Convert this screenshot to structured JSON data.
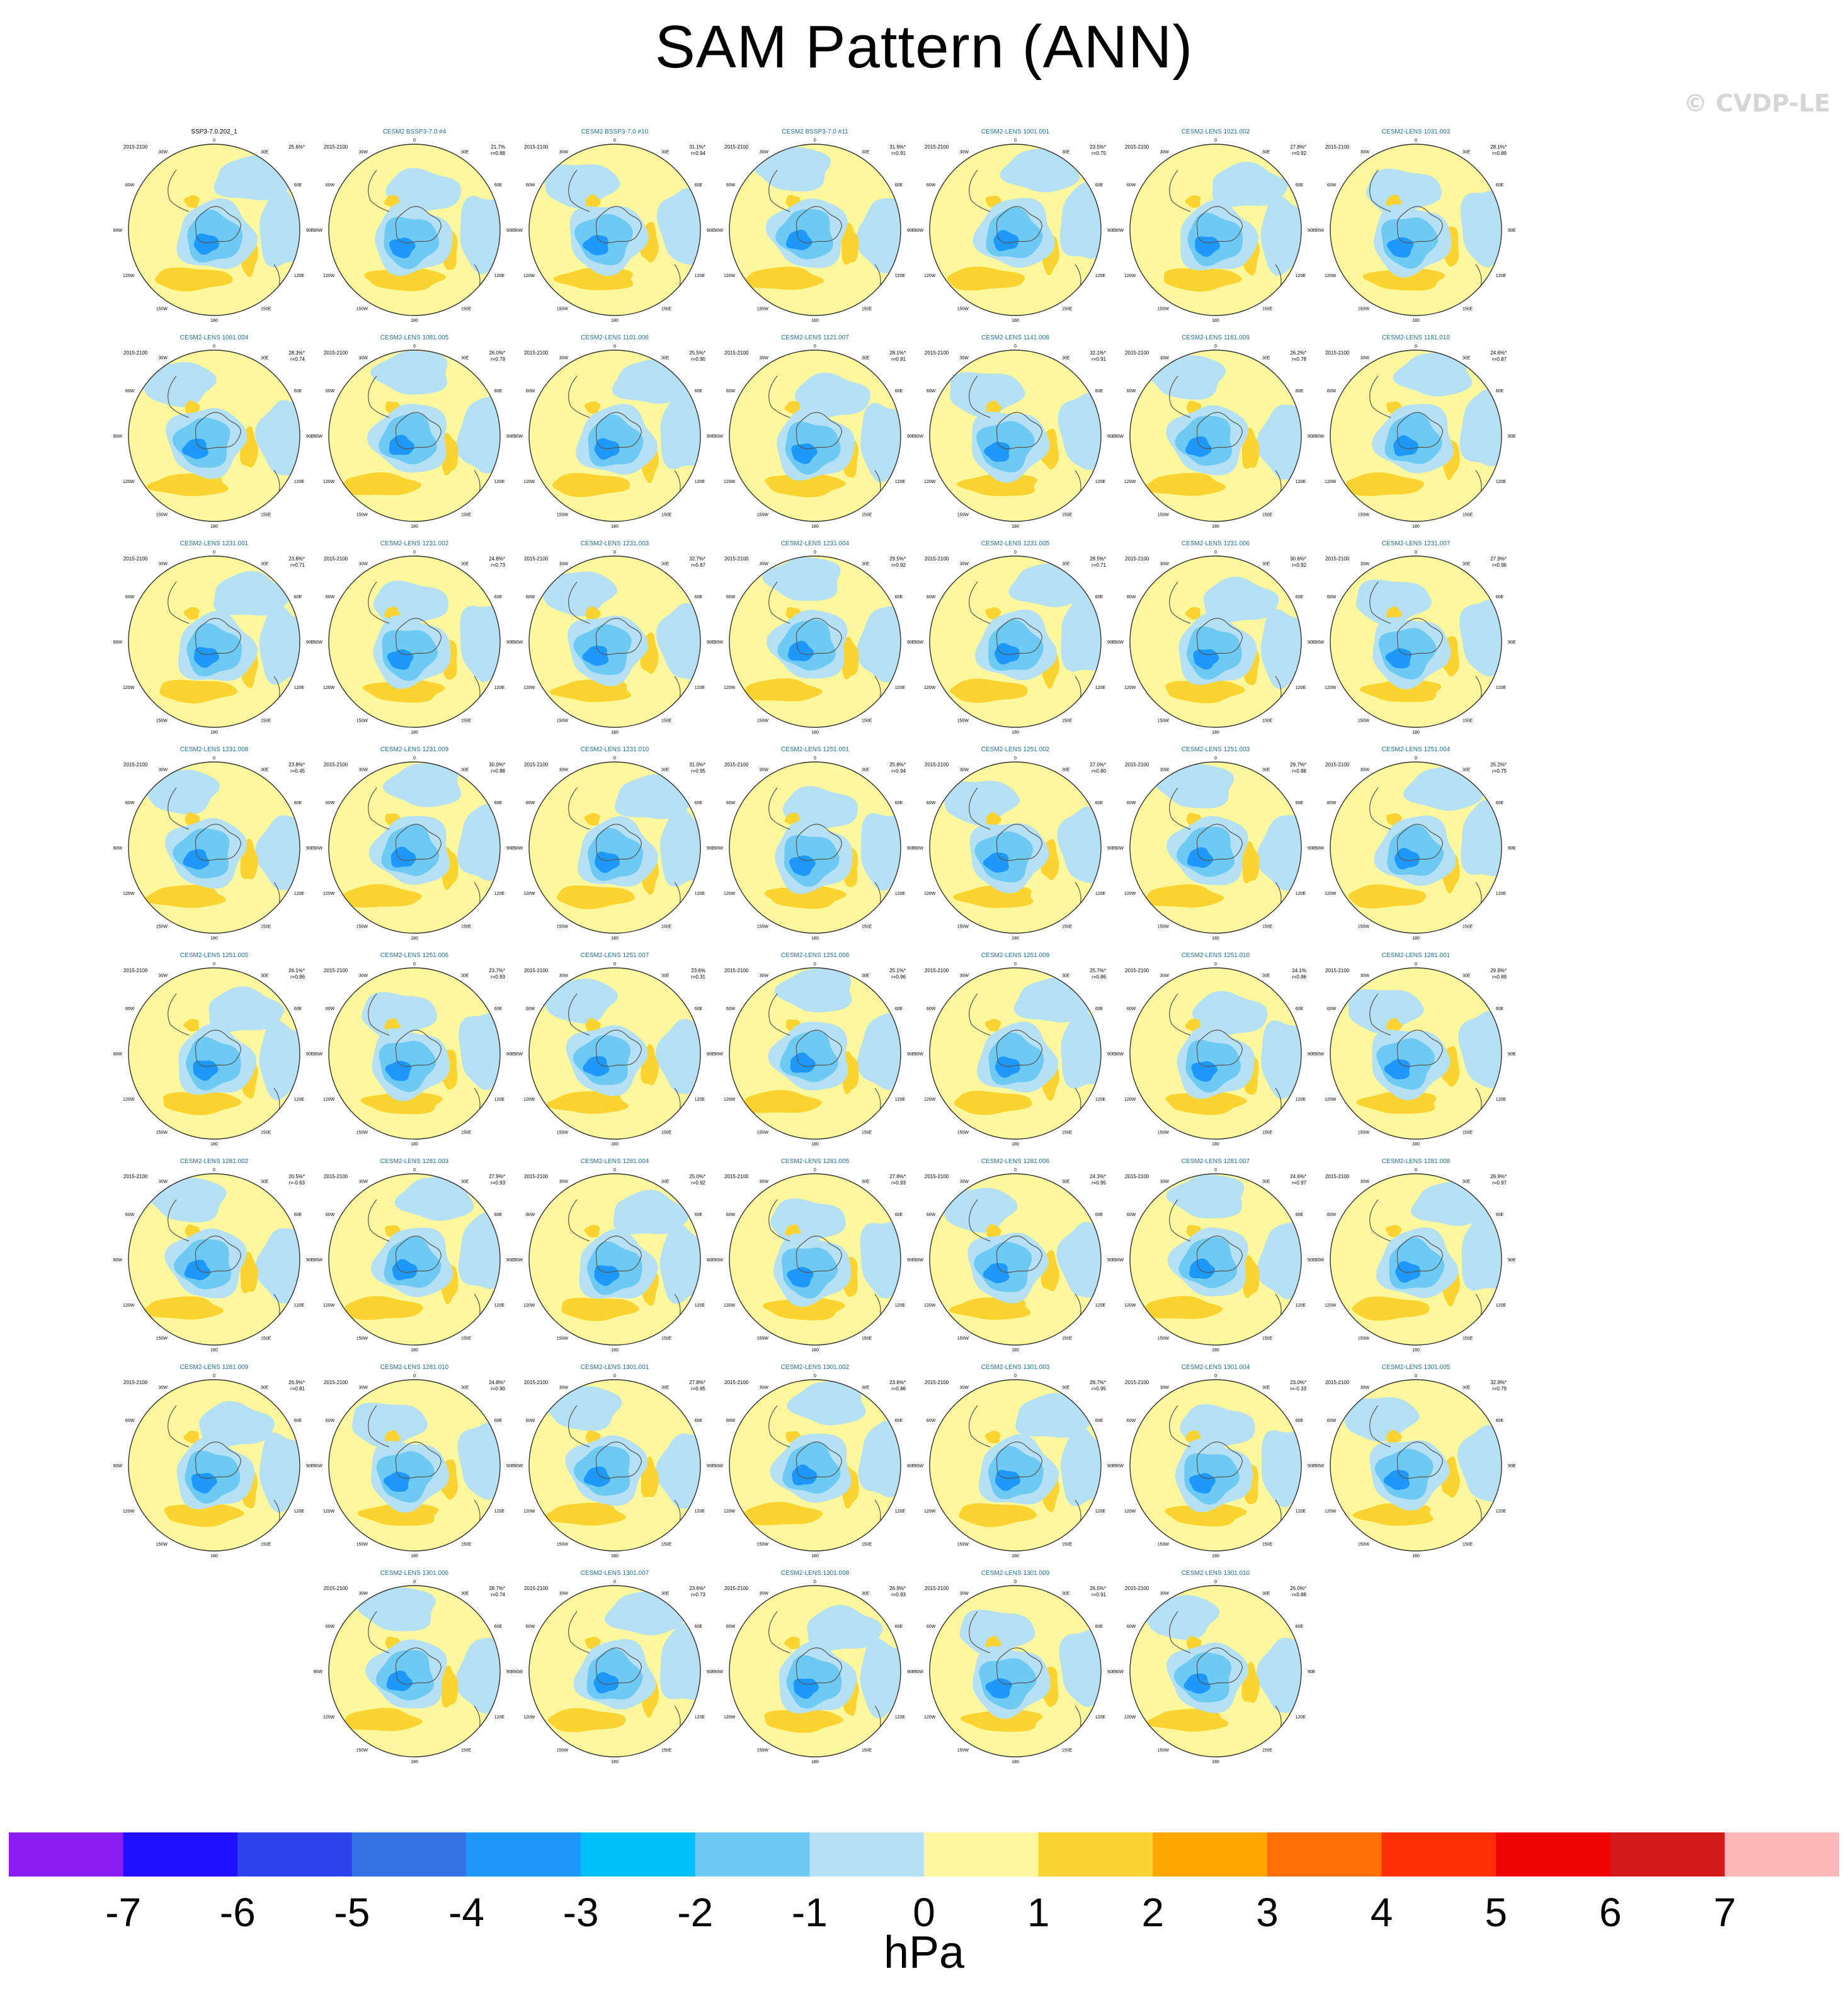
{
  "title": "SAM Pattern (ANN)",
  "watermark": "© CVDP-LE",
  "colorbar": {
    "units": "hPa",
    "tick_labels": [
      "-7",
      "-6",
      "-5",
      "-4",
      "-3",
      "-2",
      "-1",
      "0",
      "1",
      "2",
      "3",
      "4",
      "5",
      "6",
      "7"
    ],
    "colors": [
      "#8b1df0",
      "#1f10ff",
      "#2c43ee",
      "#3472e3",
      "#1f98fc",
      "#00c0fb",
      "#6ecaf2",
      "#b6e1f4",
      "#fdf89d",
      "#fdd331",
      "#ffa804",
      "#ff6f06",
      "#ff2f05",
      "#ef0503",
      "#d31a1b",
      "#fdb8b7"
    ]
  },
  "chart_data": {
    "type": "heatmap",
    "title": "SAM Pattern (ANN)",
    "field": "SAM regression pattern, annual (ANN), south-polar stereographic",
    "period_label": "2015-2100",
    "units": "hPa",
    "color_levels_hPa": [
      -7,
      -6,
      -5,
      -4,
      -3,
      -2,
      -1,
      0,
      1,
      2,
      3,
      4,
      5,
      6,
      7
    ],
    "map_labels": {
      "top": "0",
      "left": [
        "30W",
        "60W",
        "90W",
        "120W",
        "150W"
      ],
      "right": [
        "30E",
        "60E",
        "90E",
        "120E",
        "150E"
      ],
      "bottom": "180"
    },
    "panels": [
      {
        "name": "SSP3-7.0.202_1",
        "pct": "25.6%*",
        "r": ""
      },
      {
        "name": "CESM2 BSSP3-7.0 #4",
        "pct": "21.7%",
        "r": "r=0.88"
      },
      {
        "name": "CESM2 BSSP3-7.0 #10",
        "pct": "31.1%*",
        "r": "r=0.94"
      },
      {
        "name": "CESM2 BSSP3-7.0 #11",
        "pct": "31.9%*",
        "r": "r=0.91"
      },
      {
        "name": "CESM2-LENS 1001.001",
        "pct": "23.5%*",
        "r": "r=0.75"
      },
      {
        "name": "CESM2-LENS 1021.002",
        "pct": "27.8%*",
        "r": "r=0.92"
      },
      {
        "name": "CESM2-LENS 1031.003",
        "pct": "28.1%*",
        "r": "r=0.89"
      },
      {
        "name": "CESM2-LENS 1061.004",
        "pct": "28.3%*",
        "r": "r=0.74"
      },
      {
        "name": "CESM2-LENS 1081.005",
        "pct": "26.0%*",
        "r": "r=0.79"
      },
      {
        "name": "CESM2-LENS 1101.006",
        "pct": "25.5%*",
        "r": "r=0.90"
      },
      {
        "name": "CESM2-LENS 1121.007",
        "pct": "28.1%*",
        "r": "r=0.91"
      },
      {
        "name": "CESM2-LENS 1141.008",
        "pct": "32.1%*",
        "r": "r=0.91"
      },
      {
        "name": "CESM2-LENS 1161.009",
        "pct": "26.2%*",
        "r": "r=0.78"
      },
      {
        "name": "CESM2-LENS 1181.010",
        "pct": "24.6%*",
        "r": "r=0.87"
      },
      {
        "name": "CESM2-LENS 1231.001",
        "pct": "23.6%*",
        "r": "r=0.71"
      },
      {
        "name": "CESM2-LENS 1231.002",
        "pct": "24.8%*",
        "r": "r=0.73"
      },
      {
        "name": "CESM2-LENS 1231.003",
        "pct": "32.7%*",
        "r": "r=0.87"
      },
      {
        "name": "CESM2-LENS 1231.004",
        "pct": "29.5%*",
        "r": "r=0.92"
      },
      {
        "name": "CESM2-LENS 1231.005",
        "pct": "28.5%*",
        "r": "r=0.71"
      },
      {
        "name": "CESM2-LENS 1231.006",
        "pct": "30.6%*",
        "r": "r=0.92"
      },
      {
        "name": "CESM2-LENS 1231.007",
        "pct": "27.9%*",
        "r": "r=0.96"
      },
      {
        "name": "CESM2-LENS 1231.008",
        "pct": "23.8%*",
        "r": "r=0.45"
      },
      {
        "name": "CESM2-LENS 1231.009",
        "pct": "30.0%*",
        "r": "r=0.88"
      },
      {
        "name": "CESM2-LENS 1231.010",
        "pct": "31.0%*",
        "r": "r=0.95"
      },
      {
        "name": "CESM2-LENS 1251.001",
        "pct": "25.8%*",
        "r": "r=0.94"
      },
      {
        "name": "CESM2-LENS 1251.002",
        "pct": "27.0%*",
        "r": "r=0.80"
      },
      {
        "name": "CESM2-LENS 1251.003",
        "pct": "29.7%*",
        "r": "r=0.88"
      },
      {
        "name": "CESM2-LENS 1251.004",
        "pct": "25.2%*",
        "r": "r=0.75"
      },
      {
        "name": "CESM2-LENS 1251.005",
        "pct": "26.1%*",
        "r": "r=0.86"
      },
      {
        "name": "CESM2-LENS 1251.006",
        "pct": "23.7%*",
        "r": "r=0.93"
      },
      {
        "name": "CESM2-LENS 1251.007",
        "pct": "23.6%",
        "r": "r=0.31"
      },
      {
        "name": "CESM2-LENS 1251.008",
        "pct": "25.1%*",
        "r": "r=0.96"
      },
      {
        "name": "CESM2-LENS 1251.009",
        "pct": "25.7%*",
        "r": "r=0.86"
      },
      {
        "name": "CESM2-LENS 1251.010",
        "pct": "24.1%",
        "r": "r=0.86"
      },
      {
        "name": "CESM2-LENS 1281.001",
        "pct": "29.9%*",
        "r": "r=0.89"
      },
      {
        "name": "CESM2-LENS 1281.002",
        "pct": "20.5%*",
        "r": "r=-0.63"
      },
      {
        "name": "CESM2-LENS 1281.003",
        "pct": "27.9%*",
        "r": "r=0.93"
      },
      {
        "name": "CESM2-LENS 1281.004",
        "pct": "25.0%*",
        "r": "r=0.92"
      },
      {
        "name": "CESM2-LENS 1281.005",
        "pct": "27.8%*",
        "r": "r=0.93"
      },
      {
        "name": "CESM2-LENS 1281.006",
        "pct": "24.3%*",
        "r": "r=0.95"
      },
      {
        "name": "CESM2-LENS 1281.007",
        "pct": "24.6%*",
        "r": "r=0.97"
      },
      {
        "name": "CESM2-LENS 1281.008",
        "pct": "26.9%*",
        "r": "r=0.97"
      },
      {
        "name": "CESM2-LENS 1281.009",
        "pct": "26.9%*",
        "r": "r=0.81"
      },
      {
        "name": "CESM2-LENS 1281.010",
        "pct": "24.8%*",
        "r": "r=0.90"
      },
      {
        "name": "CESM2-LENS 1301.001",
        "pct": "27.8%*",
        "r": "r=0.95"
      },
      {
        "name": "CESM2-LENS 1301.002",
        "pct": "23.6%*",
        "r": "r=0.86"
      },
      {
        "name": "CESM2-LENS 1301.003",
        "pct": "28.7%*",
        "r": "r=0.95"
      },
      {
        "name": "CESM2-LENS 1301.004",
        "pct": "23.0%*",
        "r": "r=-0.33"
      },
      {
        "name": "CESM2-LENS 1301.005",
        "pct": "32.9%*",
        "r": "r=0.79"
      },
      {
        "name": "CESM2-LENS 1301.006",
        "pct": "28.7%*",
        "r": "r=0.74"
      },
      {
        "name": "CESM2-LENS 1301.007",
        "pct": "23.6%*",
        "r": "r=0.73"
      },
      {
        "name": "CESM2-LENS 1301.008",
        "pct": "26.9%*",
        "r": "r=0.93"
      },
      {
        "name": "CESM2-LENS 1301.009",
        "pct": "26.5%*",
        "r": "r=0.91"
      },
      {
        "name": "CESM2-LENS 1301.010",
        "pct": "26.0%*",
        "r": "r=0.88"
      }
    ]
  }
}
